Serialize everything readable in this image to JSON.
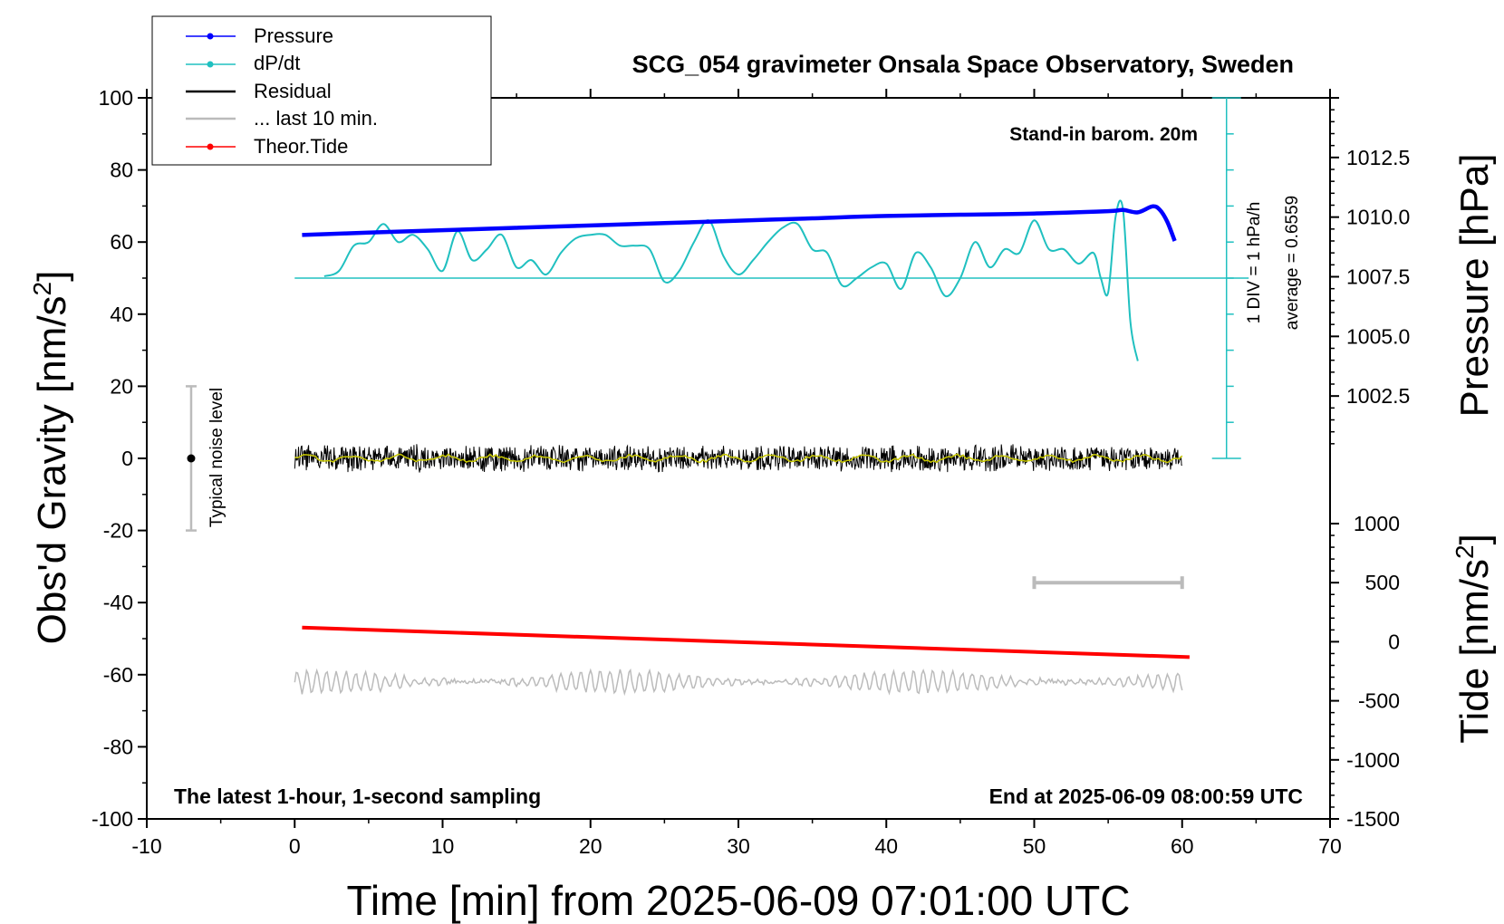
{
  "chart_data": {
    "type": "line",
    "title": "SCG_054 gravimeter Onsala Space Observatory, Sweden",
    "xlabel": "Time [min] from 2025-06-09 07:01:00 UTC",
    "ylabel": "Obs'd Gravity [nm/s",
    "ylabel_sup": "2",
    "ylabel_end": "]",
    "y2label": "Pressure [hPa]",
    "y3label": "Tide [nm/s",
    "y3label_sup": "2",
    "y3label_end": "]",
    "xlim": [
      -10,
      70
    ],
    "ylim": [
      -100,
      100
    ],
    "pressure_ylim": [
      1000.0,
      1015.0
    ],
    "tide_ylim": [
      -1500,
      1000
    ],
    "xticks": [
      "-10",
      "0",
      "10",
      "20",
      "30",
      "40",
      "50",
      "60",
      "70"
    ],
    "yticks": [
      "100",
      "80",
      "60",
      "40",
      "20",
      "0",
      "-20",
      "-40",
      "-60",
      "-80",
      "-100"
    ],
    "pressure_ticks": [
      "1012.5",
      "1010.0",
      "1007.5",
      "1005.0",
      "1002.5"
    ],
    "tide_ticks": [
      "1000",
      "500",
      "0",
      "-500",
      "-1000",
      "-1500"
    ],
    "legend": {
      "position": "top-left",
      "entries": [
        "Pressure",
        "dP/dt",
        "Residual",
        "... last 10 min.",
        "Theor.Tide"
      ]
    },
    "annotations": {
      "stand_in": "Stand-in barom. 20m",
      "div_label": "1 DIV = 1 hPa/h",
      "average_label": "average = 0.6559",
      "noise_label": "Typical noise level",
      "bottom_left": "The latest 1-hour, 1-second sampling",
      "bottom_right": "End at 2025-06-09 08:00:59 UTC"
    },
    "colors": {
      "pressure": "#0000ff",
      "dpdt": "#20c0c0",
      "residual": "#000000",
      "residual_smooth": "#c8c800",
      "last10": "#bbbbbb",
      "tide": "#ff0000",
      "noise_bar": "#bbbbbb"
    },
    "series": [
      {
        "name": "Pressure",
        "unit": "hPa",
        "x": [
          0.5,
          5,
          10,
          15,
          20,
          25,
          30,
          35,
          40,
          45,
          50,
          55,
          56,
          57,
          58,
          58.5,
          59,
          59.5
        ],
        "values": [
          1009.25,
          1009.35,
          1009.45,
          1009.55,
          1009.65,
          1009.75,
          1009.85,
          1009.95,
          1010.05,
          1010.1,
          1010.15,
          1010.25,
          1010.3,
          1010.2,
          1010.45,
          1010.3,
          1009.8,
          1009.0
        ]
      },
      {
        "name": "dP/dt",
        "unit": "nm/s2",
        "x": [
          2,
          3,
          4,
          5,
          6,
          7,
          8,
          9,
          10,
          11,
          12,
          13,
          14,
          15,
          16,
          17,
          18,
          19,
          20,
          21,
          22,
          23,
          24,
          25,
          26,
          27,
          28,
          29,
          30,
          31,
          32,
          33,
          34,
          35,
          36,
          37,
          38,
          39,
          40,
          41,
          42,
          43,
          44,
          45,
          46,
          47,
          48,
          49,
          50,
          51,
          52,
          53,
          54,
          54.5,
          55,
          55.5,
          56,
          56.5,
          57
        ],
        "values": [
          50.5,
          52,
          59,
          60,
          65,
          60,
          62,
          58,
          52,
          63,
          55,
          58,
          62,
          53,
          55,
          51,
          57,
          61,
          62,
          62,
          59,
          59,
          58,
          49,
          52,
          60,
          66,
          56,
          51,
          55,
          60,
          64,
          65,
          58,
          57,
          48,
          50,
          53,
          54,
          47,
          57,
          53,
          45,
          50,
          60,
          53,
          58,
          57,
          66,
          58,
          58,
          54,
          57,
          50,
          46,
          67,
          69,
          38,
          27
        ]
      },
      {
        "name": "Residual",
        "unit": "nm/s2",
        "x_range": [
          0,
          60
        ],
        "center": 0,
        "amplitude": 4
      },
      {
        "name": "... last 10 min.",
        "unit": "nm/s2",
        "x_range": [
          0,
          60
        ],
        "center": -62,
        "amplitude": 3
      },
      {
        "name": "Theor.Tide",
        "unit": "nm/s2",
        "x": [
          0.5,
          60.5
        ],
        "values": [
          120,
          -130
        ]
      }
    ],
    "dpdt_scale": {
      "baseline": 50,
      "scale_x": 63,
      "range": [
        0,
        100
      ],
      "minor_step": 10
    },
    "noise_bar": {
      "x": -7,
      "center": 0,
      "halfwidth": 20
    },
    "tide_scale_bar": {
      "x": [
        50,
        60
      ],
      "tide_value": 500
    }
  }
}
